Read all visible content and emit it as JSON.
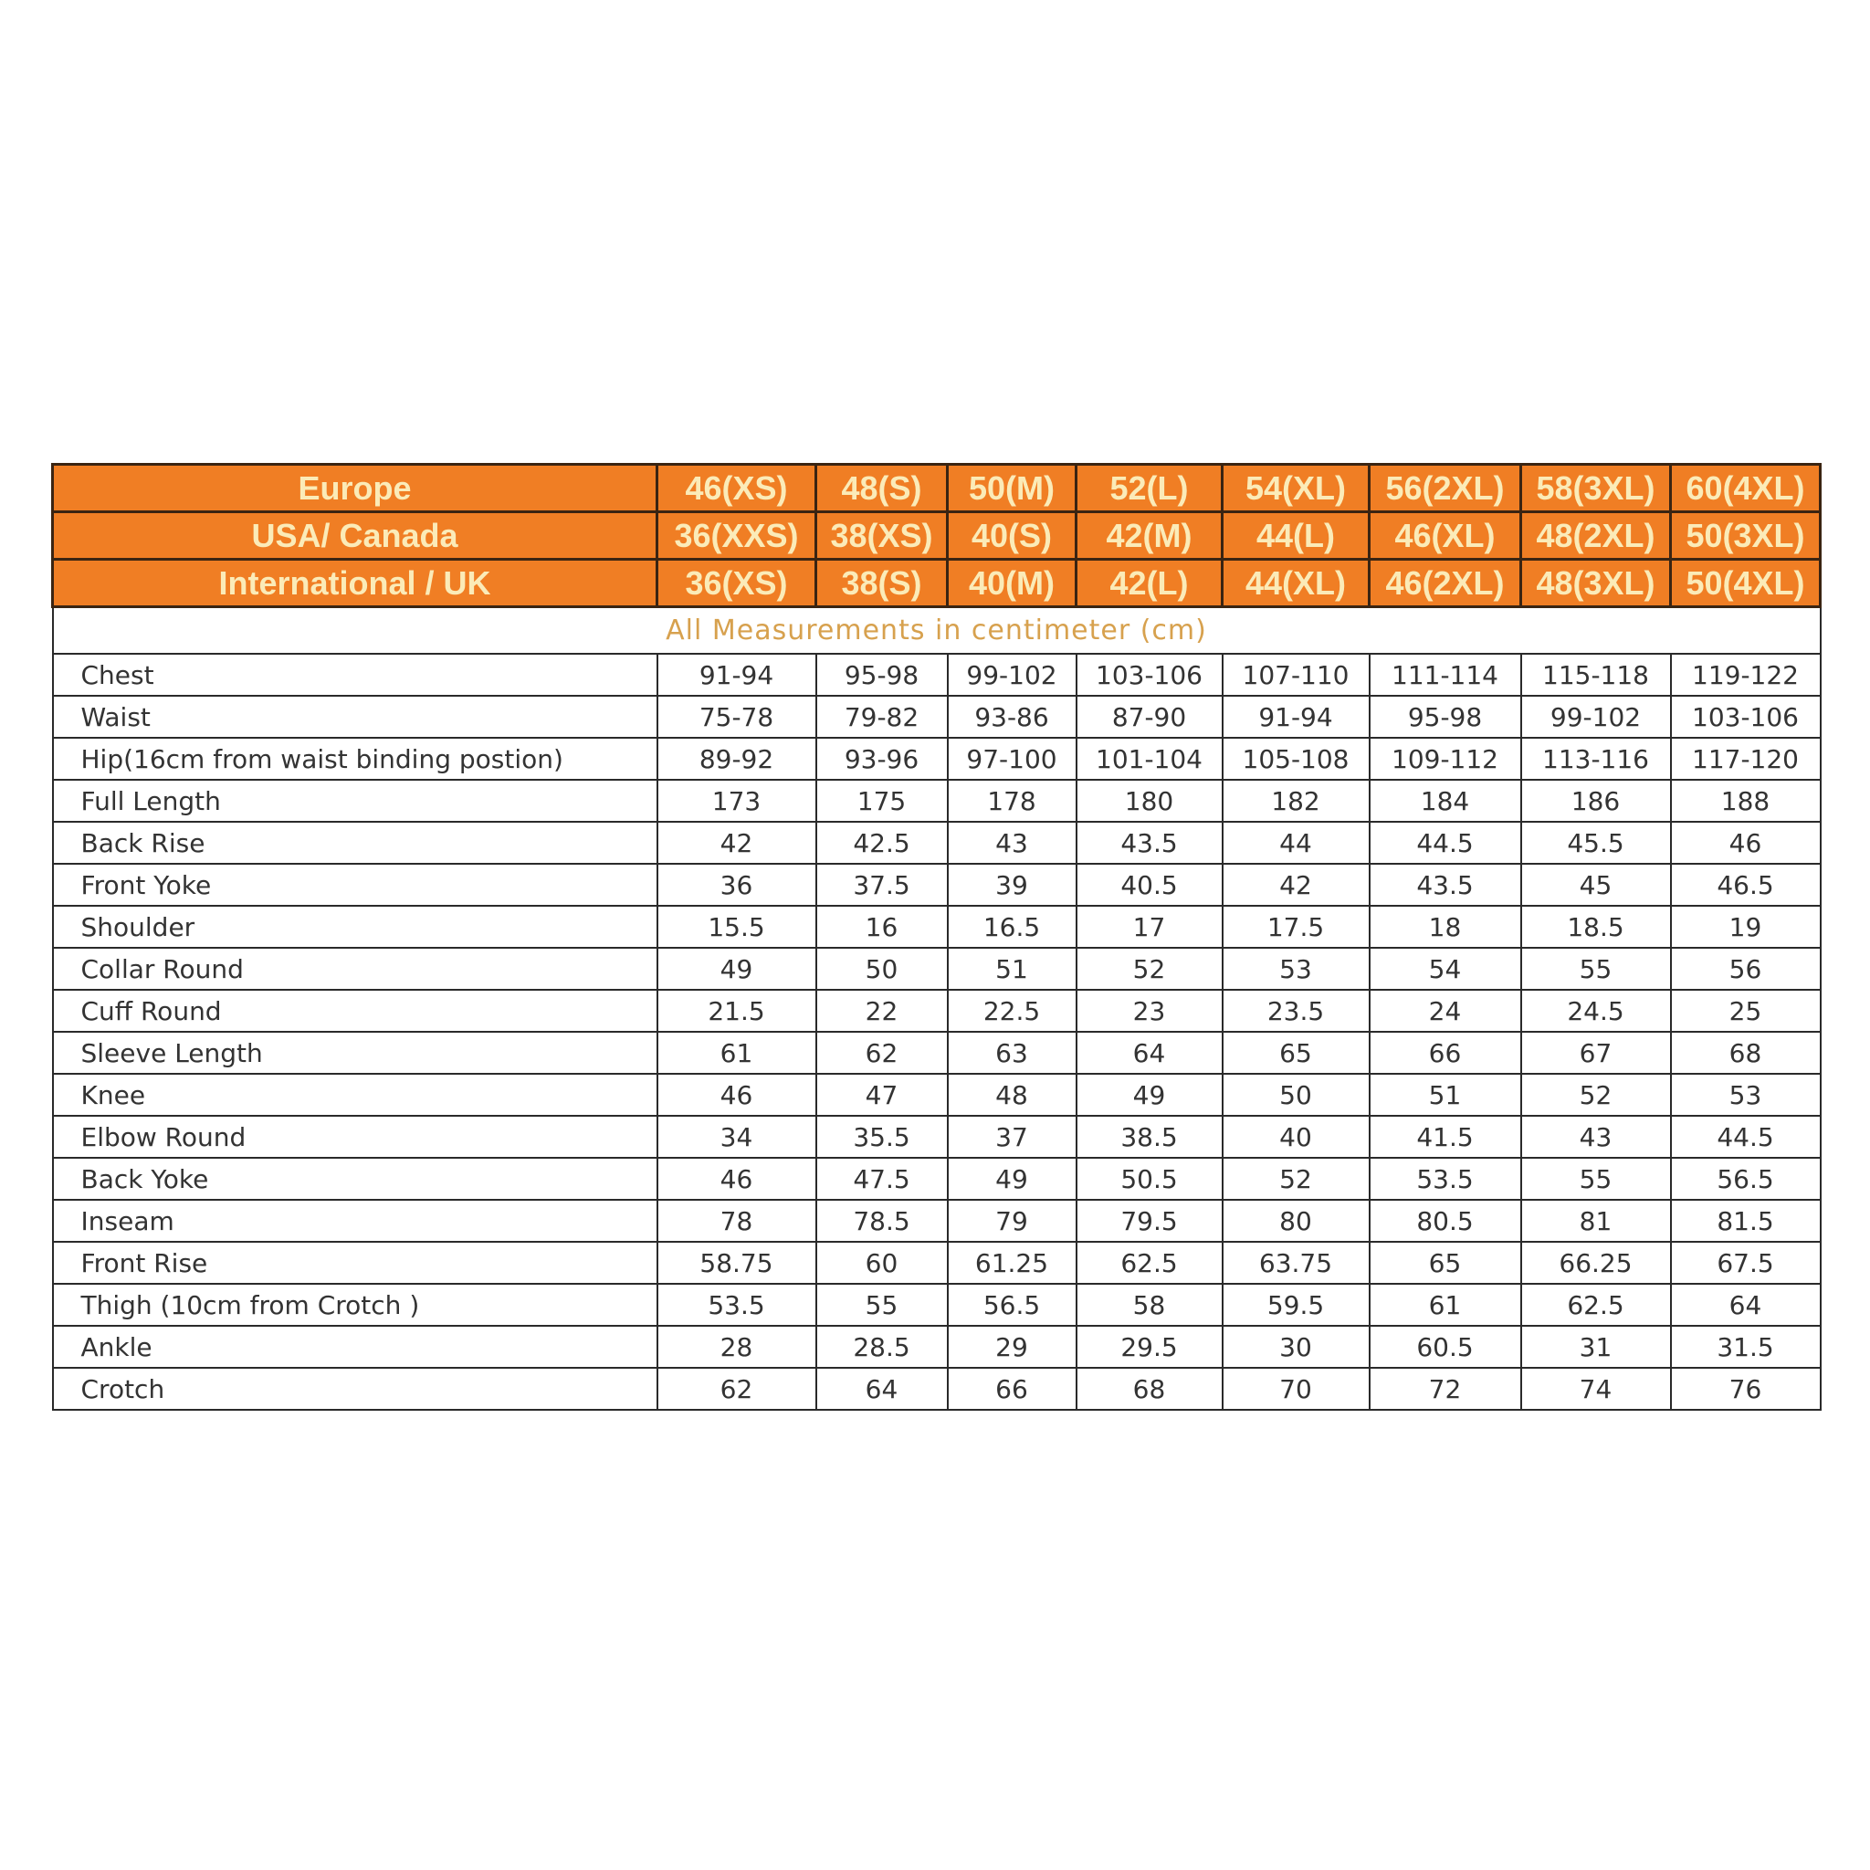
{
  "header_rows": [
    {
      "label": "Europe",
      "sizes": [
        "46(XS)",
        "48(S)",
        "50(M)",
        "52(L)",
        "54(XL)",
        "56(2XL)",
        "58(3XL)",
        "60(4XL)"
      ]
    },
    {
      "label": "USA/ Canada",
      "sizes": [
        "36(XXS)",
        "38(XS)",
        "40(S)",
        "42(M)",
        "44(L)",
        "46(XL)",
        "48(2XL)",
        "50(3XL)"
      ]
    },
    {
      "label": "International / UK",
      "sizes": [
        "36(XS)",
        "38(S)",
        "40(M)",
        "42(L)",
        "44(XL)",
        "46(2XL)",
        "48(3XL)",
        "50(4XL)"
      ]
    }
  ],
  "units_note": "All Measurements in centimeter (cm)",
  "rows": [
    {
      "label": "Chest",
      "values": [
        "91-94",
        "95-98",
        "99-102",
        "103-106",
        "107-110",
        "111-114",
        "115-118",
        "119-122"
      ]
    },
    {
      "label": "Waist",
      "values": [
        "75-78",
        "79-82",
        "93-86",
        "87-90",
        "91-94",
        "95-98",
        "99-102",
        "103-106"
      ]
    },
    {
      "label": "Hip(16cm from waist binding postion)",
      "values": [
        "89-92",
        "93-96",
        "97-100",
        "101-104",
        "105-108",
        "109-112",
        "113-116",
        "117-120"
      ]
    },
    {
      "label": "Full Length",
      "values": [
        "173",
        "175",
        "178",
        "180",
        "182",
        "184",
        "186",
        "188"
      ]
    },
    {
      "label": "Back Rise",
      "values": [
        "42",
        "42.5",
        "43",
        "43.5",
        "44",
        "44.5",
        "45.5",
        "46"
      ]
    },
    {
      "label": "Front Yoke",
      "values": [
        "36",
        "37.5",
        "39",
        "40.5",
        "42",
        "43.5",
        "45",
        "46.5"
      ]
    },
    {
      "label": "Shoulder",
      "values": [
        "15.5",
        "16",
        "16.5",
        "17",
        "17.5",
        "18",
        "18.5",
        "19"
      ]
    },
    {
      "label": "Collar Round",
      "values": [
        "49",
        "50",
        "51",
        "52",
        "53",
        "54",
        "55",
        "56"
      ]
    },
    {
      "label": "Cuff Round",
      "values": [
        "21.5",
        "22",
        "22.5",
        "23",
        "23.5",
        "24",
        "24.5",
        "25"
      ]
    },
    {
      "label": "Sleeve Length",
      "values": [
        "61",
        "62",
        "63",
        "64",
        "65",
        "66",
        "67",
        "68"
      ]
    },
    {
      "label": "Knee",
      "values": [
        "46",
        "47",
        "48",
        "49",
        "50",
        "51",
        "52",
        "53"
      ]
    },
    {
      "label": "Elbow Round",
      "values": [
        "34",
        "35.5",
        "37",
        "38.5",
        "40",
        "41.5",
        "43",
        "44.5"
      ]
    },
    {
      "label": "Back Yoke",
      "values": [
        "46",
        "47.5",
        "49",
        "50.5",
        "52",
        "53.5",
        "55",
        "56.5"
      ]
    },
    {
      "label": "Inseam",
      "values": [
        "78",
        "78.5",
        "79",
        "79.5",
        "80",
        "80.5",
        "81",
        "81.5"
      ]
    },
    {
      "label": "Front Rise",
      "values": [
        "58.75",
        "60",
        "61.25",
        "62.5",
        "63.75",
        "65",
        "66.25",
        "67.5"
      ]
    },
    {
      "label": "Thigh (10cm from Crotch )",
      "values": [
        "53.5",
        "55",
        "56.5",
        "58",
        "59.5",
        "61",
        "62.5",
        "64"
      ]
    },
    {
      "label": "Ankle",
      "values": [
        "28",
        "28.5",
        "29",
        "29.5",
        "30",
        "60.5",
        "31",
        "31.5"
      ]
    },
    {
      "label": "Crotch",
      "values": [
        "62",
        "64",
        "66",
        "68",
        "70",
        "72",
        "74",
        "76"
      ]
    }
  ],
  "colors": {
    "header_bg": "#F07E24",
    "header_text": "#FBEBB8",
    "note_text": "#D7A14E"
  }
}
